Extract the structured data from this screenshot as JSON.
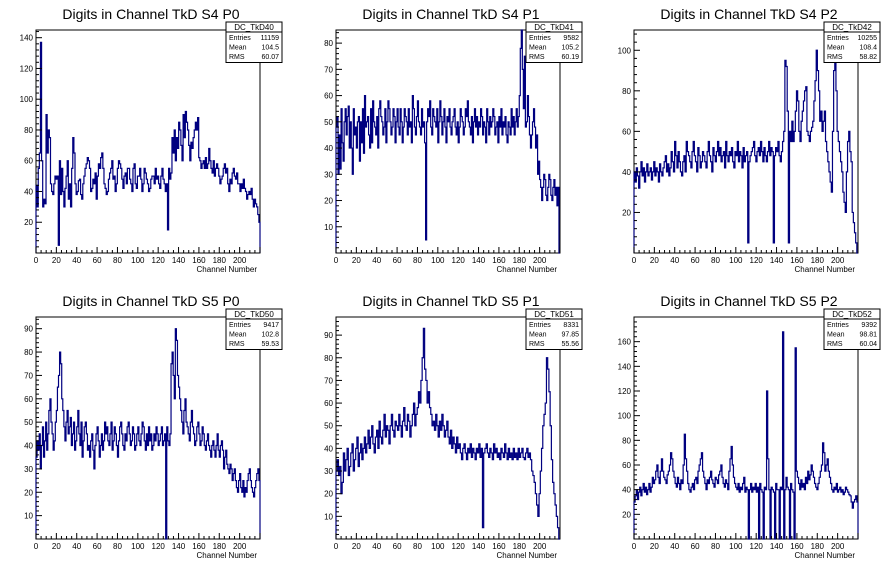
{
  "chart_data": [
    {
      "type": "histogram",
      "name": "DC_TkD40",
      "title": "Digits in Channel TkD S4 P0",
      "xlabel": "Channel Number",
      "xlim": [
        0,
        220
      ],
      "ylim": [
        0,
        145
      ],
      "xticks": [
        0,
        20,
        40,
        60,
        80,
        100,
        120,
        140,
        160,
        180,
        200
      ],
      "yticks": [
        20,
        40,
        60,
        80,
        100,
        120,
        140
      ],
      "stats": {
        "entries_label": "Entries",
        "entries": "11159",
        "mean_label": "Mean",
        "mean": "104.5",
        "rms_label": "RMS",
        "rms": "60.07"
      },
      "values": [
        44,
        30,
        55,
        65,
        137,
        60,
        30,
        35,
        32,
        90,
        65,
        80,
        75,
        45,
        40,
        38,
        45,
        50,
        48,
        50,
        5,
        60,
        38,
        55,
        40,
        30,
        42,
        50,
        60,
        35,
        45,
        30,
        55,
        75,
        65,
        45,
        38,
        40,
        47,
        48,
        38,
        35,
        45,
        50,
        55,
        58,
        62,
        60,
        55,
        40,
        42,
        48,
        45,
        52,
        35,
        50,
        58,
        55,
        62,
        65,
        55,
        45,
        42,
        38,
        40,
        48,
        52,
        55,
        60,
        48,
        50,
        40,
        45,
        55,
        60,
        58,
        55,
        48,
        42,
        50,
        52,
        45,
        55,
        55,
        48,
        45,
        40,
        55,
        58,
        45,
        42,
        50,
        50,
        55,
        48,
        40,
        45,
        55,
        52,
        48,
        45,
        40,
        42,
        48,
        50,
        50,
        45,
        55,
        48,
        50,
        45,
        42,
        50,
        55,
        48,
        45,
        40,
        45,
        15,
        55,
        48,
        52,
        75,
        65,
        80,
        60,
        75,
        68,
        85,
        80,
        70,
        60,
        90,
        75,
        92,
        85,
        80,
        70,
        60,
        72,
        68,
        75,
        80,
        85,
        80,
        88,
        62,
        60,
        55,
        58,
        60,
        55,
        62,
        55,
        58,
        68,
        60,
        55,
        52,
        60,
        50,
        55,
        58,
        55,
        50,
        45,
        48,
        50,
        55,
        58,
        52,
        55,
        45,
        40,
        48,
        45,
        52,
        55,
        50,
        48,
        52,
        45,
        45,
        40,
        45,
        42,
        48,
        42,
        40,
        35,
        38,
        40,
        38,
        42,
        35,
        30,
        35,
        32,
        30,
        25,
        20
      ]
    },
    {
      "type": "histogram",
      "name": "DC_TkD41",
      "title": "Digits in Channel TkD S4 P1",
      "xlabel": "Channel Number",
      "xlim": [
        0,
        220
      ],
      "ylim": [
        0,
        85
      ],
      "xticks": [
        0,
        20,
        40,
        60,
        80,
        100,
        120,
        140,
        160,
        180,
        200
      ],
      "yticks": [
        10,
        20,
        30,
        40,
        50,
        60,
        70,
        80
      ],
      "stats": {
        "entries_label": "Entries",
        "entries": "9582",
        "mean_label": "Mean",
        "mean": "105.2",
        "rms_label": "RMS",
        "rms": "60.19"
      },
      "values": [
        48,
        52,
        30,
        45,
        32,
        55,
        42,
        35,
        50,
        55,
        45,
        52,
        56,
        40,
        50,
        40,
        30,
        55,
        45,
        48,
        40,
        50,
        52,
        35,
        50,
        42,
        55,
        38,
        60,
        48,
        50,
        52,
        45,
        40,
        55,
        42,
        58,
        50,
        48,
        45,
        52,
        40,
        55,
        58,
        52,
        50,
        45,
        48,
        55,
        42,
        50,
        58,
        55,
        50,
        45,
        48,
        55,
        52,
        42,
        50,
        55,
        48,
        45,
        55,
        50,
        42,
        48,
        55,
        52,
        50,
        45,
        55,
        48,
        50,
        42,
        60,
        55,
        48,
        45,
        52,
        58,
        50,
        48,
        45,
        55,
        48,
        50,
        42,
        5,
        50,
        55,
        52,
        58,
        48,
        45,
        55,
        52,
        50,
        48,
        55,
        42,
        50,
        58,
        52,
        45,
        50,
        55,
        48,
        42,
        52,
        50,
        55,
        48,
        45,
        50,
        52,
        55,
        48,
        45,
        50,
        42,
        48,
        55,
        52,
        50,
        45,
        48,
        55,
        52,
        58,
        50,
        48,
        45,
        52,
        42,
        50,
        55,
        48,
        52,
        45,
        50,
        48,
        55,
        52,
        45,
        50,
        48,
        42,
        55,
        50,
        45,
        52,
        48,
        50,
        55,
        52,
        45,
        48,
        50,
        42,
        52,
        48,
        55,
        45,
        50,
        48,
        52,
        45,
        42,
        50,
        48,
        45,
        55,
        48,
        52,
        45,
        50,
        55,
        48,
        52,
        60,
        78,
        85,
        70,
        55,
        75,
        48,
        50,
        60,
        52,
        45,
        40,
        45,
        50,
        55,
        48,
        40,
        45,
        30,
        35,
        28,
        25,
        20,
        25,
        30,
        28,
        22,
        20,
        25,
        30,
        28,
        22,
        20,
        25,
        28,
        22,
        25,
        18,
        25,
        0
      ]
    },
    {
      "type": "histogram",
      "name": "DC_TkD42",
      "title": "Digits in Channel TkD S4 P2",
      "xlabel": "Channel Number",
      "xlim": [
        0,
        220
      ],
      "ylim": [
        0,
        110
      ],
      "xticks": [
        0,
        20,
        40,
        60,
        80,
        100,
        120,
        140,
        160,
        180,
        200
      ],
      "yticks": [
        20,
        40,
        60,
        80,
        100
      ],
      "stats": {
        "entries_label": "Entries",
        "entries": "10255",
        "mean_label": "Mean",
        "mean": "108.4",
        "rms_label": "RMS",
        "rms": "58.82"
      },
      "values": [
        40,
        35,
        42,
        38,
        32,
        40,
        45,
        38,
        42,
        35,
        40,
        44,
        38,
        40,
        42,
        36,
        40,
        45,
        38,
        42,
        40,
        35,
        44,
        40,
        38,
        42,
        45,
        48,
        40,
        44,
        38,
        42,
        50,
        45,
        40,
        55,
        48,
        42,
        50,
        45,
        40,
        38,
        45,
        48,
        40,
        55,
        50,
        48,
        45,
        42,
        50,
        55,
        48,
        45,
        40,
        52,
        48,
        42,
        45,
        50,
        48,
        45,
        42,
        50,
        55,
        48,
        45,
        40,
        52,
        48,
        45,
        50,
        55,
        48,
        52,
        45,
        48,
        50,
        42,
        55,
        48,
        45,
        50,
        48,
        52,
        45,
        42,
        50,
        48,
        55,
        45,
        50,
        48,
        42,
        52,
        45,
        48,
        50,
        5,
        45,
        48,
        50,
        52,
        55,
        48,
        45,
        50,
        52,
        48,
        55,
        50,
        45,
        52,
        48,
        45,
        50,
        55,
        48,
        52,
        50,
        5,
        48,
        52,
        50,
        55,
        48,
        45,
        50,
        55,
        60,
        95,
        92,
        70,
        5,
        60,
        55,
        65,
        55,
        60,
        70,
        80,
        75,
        60,
        55,
        65,
        70,
        75,
        80,
        82,
        60,
        58,
        55,
        60,
        62,
        65,
        75,
        85,
        100,
        90,
        80,
        65,
        70,
        60,
        65,
        70,
        55,
        50,
        45,
        40,
        35,
        30,
        60,
        90,
        100,
        80,
        60,
        55,
        50,
        45,
        40,
        30,
        25,
        20,
        40,
        55,
        60,
        50,
        45,
        20,
        15,
        10,
        5,
        0
      ]
    },
    {
      "type": "histogram",
      "name": "DC_TkD50",
      "title": "Digits in Channel TkD S5 P0",
      "xlabel": "Channel Number",
      "xlim": [
        0,
        220
      ],
      "ylim": [
        0,
        95
      ],
      "xticks": [
        0,
        20,
        40,
        60,
        80,
        100,
        120,
        140,
        160,
        180,
        200
      ],
      "yticks": [
        10,
        20,
        30,
        40,
        50,
        60,
        70,
        80,
        90
      ],
      "stats": {
        "entries_label": "Entries",
        "entries": "9417",
        "mean_label": "Mean",
        "mean": "102.8",
        "rms_label": "RMS",
        "rms": "59.53"
      },
      "values": [
        35,
        42,
        38,
        45,
        30,
        40,
        48,
        35,
        42,
        50,
        38,
        45,
        55,
        60,
        50,
        45,
        38,
        42,
        50,
        55,
        65,
        70,
        80,
        75,
        60,
        55,
        48,
        42,
        50,
        55,
        45,
        48,
        52,
        40,
        45,
        50,
        38,
        42,
        48,
        55,
        45,
        40,
        50,
        35,
        42,
        48,
        50,
        45,
        38,
        40,
        35,
        42,
        45,
        38,
        30,
        40,
        45,
        48,
        42,
        35,
        40,
        45,
        38,
        42,
        50,
        45,
        48,
        42,
        40,
        45,
        50,
        38,
        42,
        48,
        45,
        40,
        35,
        42,
        48,
        50,
        45,
        40,
        38,
        45,
        42,
        48,
        50,
        45,
        40,
        42,
        48,
        45,
        38,
        40,
        45,
        48,
        42,
        40,
        45,
        50,
        48,
        42,
        38,
        45,
        40,
        48,
        42,
        45,
        38,
        40,
        45,
        42,
        48,
        45,
        40,
        42,
        45,
        48,
        40,
        42,
        45,
        0,
        48,
        42,
        40,
        45,
        75,
        80,
        70,
        60,
        90,
        85,
        70,
        65,
        60,
        55,
        50,
        45,
        55,
        60,
        50,
        48,
        45,
        42,
        50,
        55,
        48,
        45,
        40,
        42,
        48,
        50,
        45,
        40,
        42,
        48,
        45,
        40,
        38,
        42,
        45,
        40,
        38,
        35,
        40,
        42,
        38,
        35,
        40,
        45,
        38,
        35,
        40,
        42,
        38,
        30,
        35,
        38,
        32,
        30,
        28,
        32,
        30,
        25,
        28,
        30,
        25,
        22,
        20,
        25,
        28,
        22,
        20,
        25,
        18,
        22,
        20,
        25,
        28,
        30,
        25,
        22,
        20,
        18,
        22,
        25,
        28,
        30,
        25
      ]
    },
    {
      "type": "histogram",
      "name": "DC_TkD51",
      "title": "Digits in Channel TkD S5 P1",
      "xlabel": "Channel Number",
      "xlim": [
        0,
        220
      ],
      "ylim": [
        0,
        98
      ],
      "xticks": [
        0,
        20,
        40,
        60,
        80,
        100,
        120,
        140,
        160,
        180,
        200
      ],
      "yticks": [
        10,
        20,
        30,
        40,
        50,
        60,
        70,
        80,
        90
      ],
      "stats": {
        "entries_label": "Entries",
        "entries": "8331",
        "mean_label": "Mean",
        "mean": "97.85",
        "rms_label": "RMS",
        "rms": "55.56"
      },
      "values": [
        30,
        35,
        28,
        32,
        20,
        25,
        38,
        30,
        35,
        40,
        28,
        32,
        38,
        42,
        30,
        35,
        40,
        45,
        32,
        38,
        42,
        35,
        40,
        45,
        38,
        42,
        48,
        40,
        45,
        50,
        42,
        38,
        45,
        48,
        40,
        52,
        45,
        42,
        48,
        55,
        45,
        50,
        48,
        42,
        50,
        55,
        48,
        45,
        52,
        50,
        48,
        55,
        50,
        45,
        52,
        58,
        50,
        48,
        55,
        52,
        45,
        50,
        55,
        60,
        50,
        55,
        58,
        65,
        60,
        70,
        80,
        93,
        75,
        70,
        60,
        65,
        58,
        55,
        50,
        52,
        48,
        55,
        50,
        45,
        52,
        48,
        55,
        50,
        45,
        48,
        52,
        45,
        42,
        48,
        40,
        45,
        42,
        38,
        45,
        40,
        42,
        38,
        35,
        40,
        42,
        38,
        35,
        40,
        38,
        42,
        36,
        40,
        38,
        35,
        40,
        38,
        42,
        36,
        40,
        5,
        38,
        40,
        42,
        38,
        36,
        40,
        38,
        35,
        42,
        38,
        40,
        36,
        38,
        35,
        40,
        38,
        36,
        42,
        38,
        35,
        40,
        36,
        38,
        35,
        40,
        36,
        38,
        35,
        40,
        36,
        38,
        40,
        36,
        35,
        38,
        40,
        36,
        38,
        35,
        30,
        28,
        25,
        20,
        15,
        10,
        20,
        30,
        40,
        50,
        55,
        60,
        80,
        75,
        65,
        50,
        35,
        25,
        20,
        15,
        10,
        5,
        0
      ]
    },
    {
      "type": "histogram",
      "name": "DC_TkD52",
      "title": "Digits in Channel TkD S5 P2",
      "xlabel": "Channel Number",
      "xlim": [
        0,
        220
      ],
      "ylim": [
        0,
        180
      ],
      "xticks": [
        0,
        20,
        40,
        60,
        80,
        100,
        120,
        140,
        160,
        180,
        200
      ],
      "yticks": [
        20,
        40,
        60,
        80,
        100,
        120,
        140,
        160
      ],
      "stats": {
        "entries_label": "Entries",
        "entries": "9392",
        "mean_label": "Mean",
        "mean": "98.81",
        "rms_label": "RMS",
        "rms": "60.04"
      },
      "values": [
        30,
        35,
        40,
        32,
        38,
        42,
        35,
        40,
        45,
        38,
        42,
        36,
        40,
        45,
        38,
        42,
        50,
        45,
        48,
        55,
        60,
        50,
        45,
        55,
        65,
        55,
        50,
        48,
        45,
        52,
        55,
        60,
        70,
        65,
        55,
        50,
        45,
        42,
        50,
        45,
        40,
        48,
        45,
        60,
        85,
        65,
        55,
        45,
        40,
        38,
        42,
        45,
        40,
        48,
        50,
        45,
        55,
        60,
        65,
        70,
        55,
        50,
        45,
        40,
        48,
        45,
        50,
        55,
        48,
        45,
        42,
        50,
        48,
        45,
        52,
        55,
        60,
        50,
        45,
        42,
        48,
        45,
        40,
        55,
        65,
        75,
        60,
        50,
        45,
        42,
        40,
        45,
        38,
        42,
        40,
        45,
        50,
        38,
        42,
        40,
        0,
        40,
        45,
        38,
        42,
        40,
        45,
        38,
        42,
        0,
        45,
        40,
        38,
        0,
        42,
        40,
        120,
        65,
        40,
        0,
        42,
        40,
        38,
        0,
        45,
        40,
        40,
        0,
        42,
        40,
        168,
        0,
        40,
        50,
        42,
        40,
        0,
        45,
        40,
        38,
        0,
        155,
        55,
        50,
        45,
        40,
        48,
        42,
        45,
        40,
        50,
        45,
        55,
        48,
        52,
        60,
        55,
        50,
        45,
        42,
        40,
        45,
        50,
        55,
        60,
        78,
        70,
        55,
        60,
        65,
        55,
        50,
        45,
        40,
        38,
        42,
        40,
        45,
        38,
        40,
        42,
        38,
        40,
        36,
        38,
        42,
        40,
        38,
        36,
        35,
        30,
        25,
        30,
        32,
        35,
        30
      ]
    }
  ]
}
